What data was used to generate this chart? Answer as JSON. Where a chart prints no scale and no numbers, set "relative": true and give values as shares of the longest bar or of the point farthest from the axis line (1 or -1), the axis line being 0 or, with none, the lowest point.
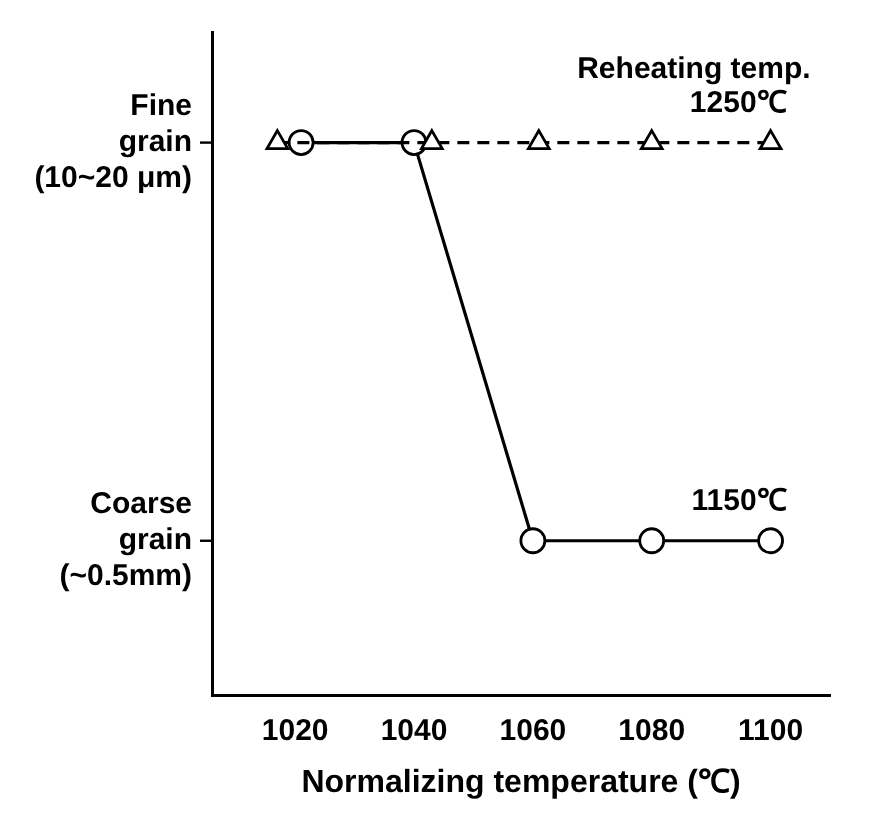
{
  "chart_data": {
    "type": "line",
    "xlabel": "Normalizing temperature (℃)",
    "legend_title": "Reheating temp.",
    "xlim": [
      1006,
      1110
    ],
    "xticks": [
      1020,
      1040,
      1060,
      1080,
      1100
    ],
    "relative": true,
    "grid": false,
    "legend": false,
    "annotations": [
      "Fine\ngrain\n(10~20 μm)",
      "Coarse\ngrain\n(~0.5mm)"
    ],
    "series": [
      {
        "name": "1250℃",
        "color": "#000000",
        "marker": "triangle",
        "line_style": "dashed",
        "x": [
          1017,
          1043,
          1061,
          1080,
          1100
        ],
        "values": [
          1,
          1,
          1,
          1,
          1
        ]
      },
      {
        "name": "1150℃",
        "color": "#000000",
        "marker": "circle",
        "line_style": "solid",
        "x": [
          1021,
          1040,
          1060,
          1080,
          1100
        ],
        "values": [
          1,
          1,
          0.28,
          0.28,
          0.28
        ]
      }
    ]
  }
}
